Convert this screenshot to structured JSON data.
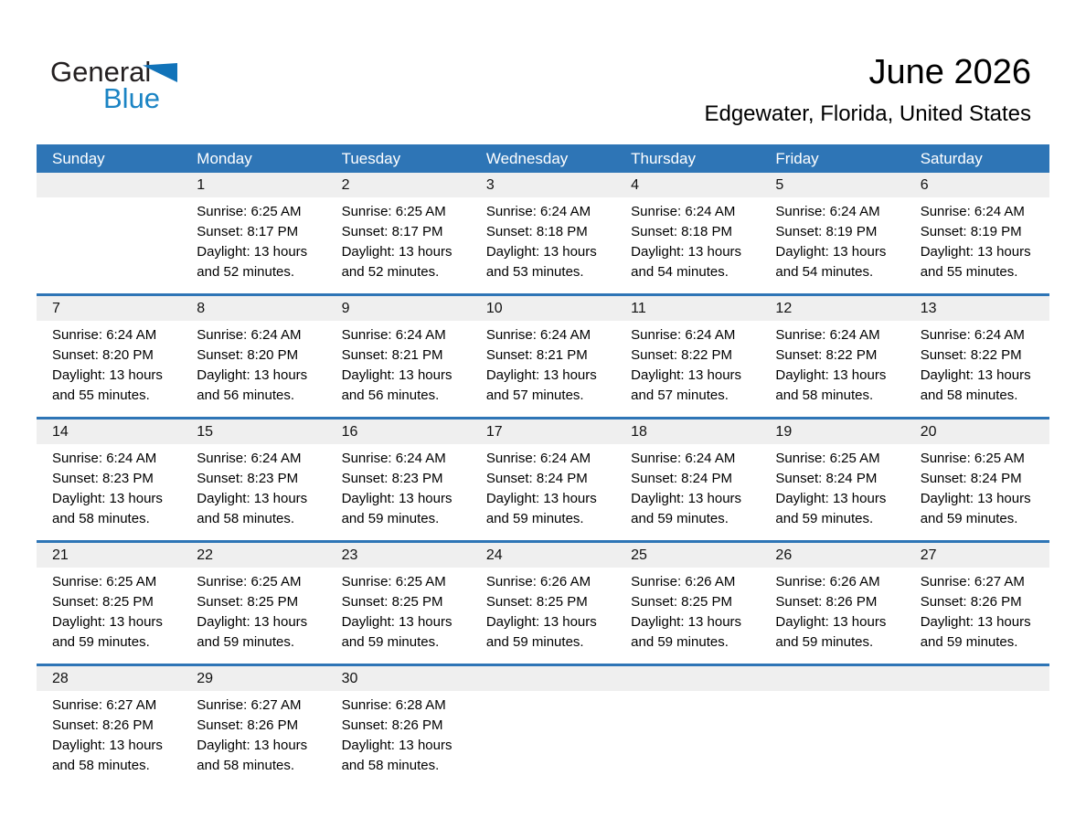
{
  "logo": {
    "line1": "General",
    "line2": "Blue",
    "triangle_icon": "blue-right-triangle"
  },
  "header": {
    "title": "June 2026",
    "subtitle": "Edgewater, Florida, United States"
  },
  "colors": {
    "header_blue": "#2e75b6",
    "week_separator_blue": "#2e75b6",
    "day_number_band_gray": "#efefef",
    "logo_blue": "#1b84c4",
    "logo_triangle_blue": "#1173b9"
  },
  "weekdays": [
    "Sunday",
    "Monday",
    "Tuesday",
    "Wednesday",
    "Thursday",
    "Friday",
    "Saturday"
  ],
  "weeks": [
    [
      null,
      {
        "day": "1",
        "lines": [
          "Sunrise: 6:25 AM",
          "Sunset: 8:17 PM",
          "Daylight: 13 hours",
          "and 52 minutes."
        ]
      },
      {
        "day": "2",
        "lines": [
          "Sunrise: 6:25 AM",
          "Sunset: 8:17 PM",
          "Daylight: 13 hours",
          "and 52 minutes."
        ]
      },
      {
        "day": "3",
        "lines": [
          "Sunrise: 6:24 AM",
          "Sunset: 8:18 PM",
          "Daylight: 13 hours",
          "and 53 minutes."
        ]
      },
      {
        "day": "4",
        "lines": [
          "Sunrise: 6:24 AM",
          "Sunset: 8:18 PM",
          "Daylight: 13 hours",
          "and 54 minutes."
        ]
      },
      {
        "day": "5",
        "lines": [
          "Sunrise: 6:24 AM",
          "Sunset: 8:19 PM",
          "Daylight: 13 hours",
          "and 54 minutes."
        ]
      },
      {
        "day": "6",
        "lines": [
          "Sunrise: 6:24 AM",
          "Sunset: 8:19 PM",
          "Daylight: 13 hours",
          "and 55 minutes."
        ]
      }
    ],
    [
      {
        "day": "7",
        "lines": [
          "Sunrise: 6:24 AM",
          "Sunset: 8:20 PM",
          "Daylight: 13 hours",
          "and 55 minutes."
        ]
      },
      {
        "day": "8",
        "lines": [
          "Sunrise: 6:24 AM",
          "Sunset: 8:20 PM",
          "Daylight: 13 hours",
          "and 56 minutes."
        ]
      },
      {
        "day": "9",
        "lines": [
          "Sunrise: 6:24 AM",
          "Sunset: 8:21 PM",
          "Daylight: 13 hours",
          "and 56 minutes."
        ]
      },
      {
        "day": "10",
        "lines": [
          "Sunrise: 6:24 AM",
          "Sunset: 8:21 PM",
          "Daylight: 13 hours",
          "and 57 minutes."
        ]
      },
      {
        "day": "11",
        "lines": [
          "Sunrise: 6:24 AM",
          "Sunset: 8:22 PM",
          "Daylight: 13 hours",
          "and 57 minutes."
        ]
      },
      {
        "day": "12",
        "lines": [
          "Sunrise: 6:24 AM",
          "Sunset: 8:22 PM",
          "Daylight: 13 hours",
          "and 58 minutes."
        ]
      },
      {
        "day": "13",
        "lines": [
          "Sunrise: 6:24 AM",
          "Sunset: 8:22 PM",
          "Daylight: 13 hours",
          "and 58 minutes."
        ]
      }
    ],
    [
      {
        "day": "14",
        "lines": [
          "Sunrise: 6:24 AM",
          "Sunset: 8:23 PM",
          "Daylight: 13 hours",
          "and 58 minutes."
        ]
      },
      {
        "day": "15",
        "lines": [
          "Sunrise: 6:24 AM",
          "Sunset: 8:23 PM",
          "Daylight: 13 hours",
          "and 58 minutes."
        ]
      },
      {
        "day": "16",
        "lines": [
          "Sunrise: 6:24 AM",
          "Sunset: 8:23 PM",
          "Daylight: 13 hours",
          "and 59 minutes."
        ]
      },
      {
        "day": "17",
        "lines": [
          "Sunrise: 6:24 AM",
          "Sunset: 8:24 PM",
          "Daylight: 13 hours",
          "and 59 minutes."
        ]
      },
      {
        "day": "18",
        "lines": [
          "Sunrise: 6:24 AM",
          "Sunset: 8:24 PM",
          "Daylight: 13 hours",
          "and 59 minutes."
        ]
      },
      {
        "day": "19",
        "lines": [
          "Sunrise: 6:25 AM",
          "Sunset: 8:24 PM",
          "Daylight: 13 hours",
          "and 59 minutes."
        ]
      },
      {
        "day": "20",
        "lines": [
          "Sunrise: 6:25 AM",
          "Sunset: 8:24 PM",
          "Daylight: 13 hours",
          "and 59 minutes."
        ]
      }
    ],
    [
      {
        "day": "21",
        "lines": [
          "Sunrise: 6:25 AM",
          "Sunset: 8:25 PM",
          "Daylight: 13 hours",
          "and 59 minutes."
        ]
      },
      {
        "day": "22",
        "lines": [
          "Sunrise: 6:25 AM",
          "Sunset: 8:25 PM",
          "Daylight: 13 hours",
          "and 59 minutes."
        ]
      },
      {
        "day": "23",
        "lines": [
          "Sunrise: 6:25 AM",
          "Sunset: 8:25 PM",
          "Daylight: 13 hours",
          "and 59 minutes."
        ]
      },
      {
        "day": "24",
        "lines": [
          "Sunrise: 6:26 AM",
          "Sunset: 8:25 PM",
          "Daylight: 13 hours",
          "and 59 minutes."
        ]
      },
      {
        "day": "25",
        "lines": [
          "Sunrise: 6:26 AM",
          "Sunset: 8:25 PM",
          "Daylight: 13 hours",
          "and 59 minutes."
        ]
      },
      {
        "day": "26",
        "lines": [
          "Sunrise: 6:26 AM",
          "Sunset: 8:26 PM",
          "Daylight: 13 hours",
          "and 59 minutes."
        ]
      },
      {
        "day": "27",
        "lines": [
          "Sunrise: 6:27 AM",
          "Sunset: 8:26 PM",
          "Daylight: 13 hours",
          "and 59 minutes."
        ]
      }
    ],
    [
      {
        "day": "28",
        "lines": [
          "Sunrise: 6:27 AM",
          "Sunset: 8:26 PM",
          "Daylight: 13 hours",
          "and 58 minutes."
        ]
      },
      {
        "day": "29",
        "lines": [
          "Sunrise: 6:27 AM",
          "Sunset: 8:26 PM",
          "Daylight: 13 hours",
          "and 58 minutes."
        ]
      },
      {
        "day": "30",
        "lines": [
          "Sunrise: 6:28 AM",
          "Sunset: 8:26 PM",
          "Daylight: 13 hours",
          "and 58 minutes."
        ]
      },
      null,
      null,
      null,
      null
    ]
  ]
}
